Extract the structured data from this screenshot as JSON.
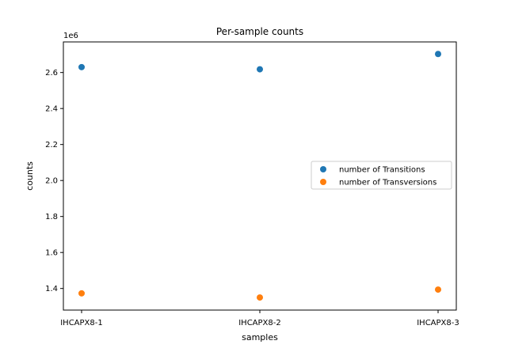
{
  "chart_data": {
    "type": "scatter",
    "title": "Per-sample counts",
    "xlabel": "samples",
    "ylabel": "counts",
    "y_offset_label": "1e6",
    "y_scale": 1000000,
    "categories": [
      "IHCAPX8-1",
      "IHCAPX8-2",
      "IHCAPX8-3"
    ],
    "series": [
      {
        "name": "number of Transitions",
        "color": "#1f77b4",
        "values": [
          2630000,
          2618000,
          2703000
        ]
      },
      {
        "name": "number of Transversions",
        "color": "#ff7f0e",
        "values": [
          1373000,
          1350000,
          1394000
        ]
      }
    ],
    "ylim": [
      1280000,
      2770000
    ],
    "yticks": [
      1400000,
      1600000,
      1800000,
      2000000,
      2200000,
      2400000,
      2600000
    ],
    "ytick_labels": [
      "1.4",
      "1.6",
      "1.8",
      "2.0",
      "2.2",
      "2.4",
      "2.6"
    ],
    "grid": false,
    "legend_position": "center-right"
  }
}
